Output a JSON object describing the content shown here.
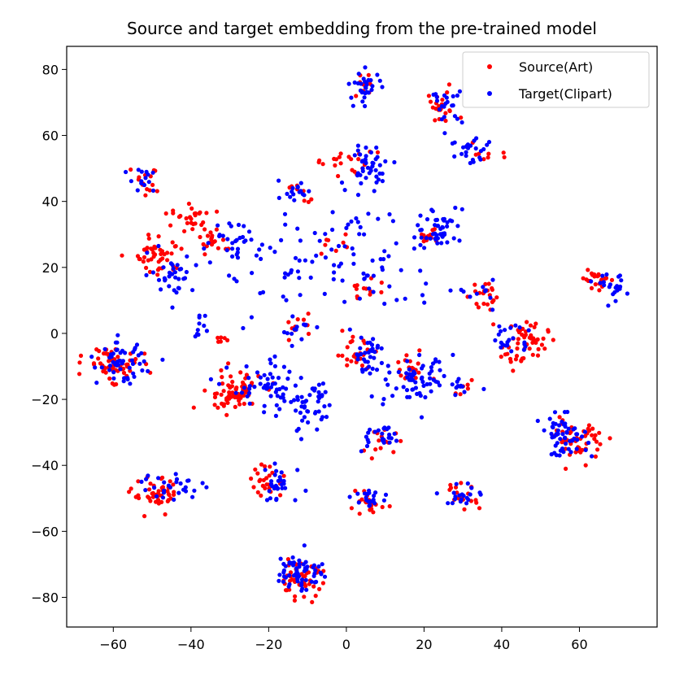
{
  "chart_data": {
    "type": "scatter",
    "title": "Source and target embedding from the pre-trained model",
    "xlabel": "",
    "ylabel": "",
    "xlim": [
      -72,
      80
    ],
    "ylim": [
      -89,
      87
    ],
    "xticks": [
      -60,
      -40,
      -20,
      0,
      20,
      40,
      60
    ],
    "yticks": [
      -80,
      -60,
      -40,
      -20,
      0,
      20,
      40,
      60,
      80
    ],
    "grid": false,
    "legend_position": "top-right",
    "legend": [
      "Source(Art)",
      "Target(Clipart)"
    ],
    "series": [
      {
        "name": "Source(Art)",
        "color": "#ff0000",
        "clusters": [
          {
            "center": [
              5,
              75
            ],
            "spread": [
              2,
              2
            ],
            "count": 8
          },
          {
            "center": [
              24,
              68
            ],
            "spread": [
              2.5,
              2.5
            ],
            "count": 22
          },
          {
            "center": [
              -51,
              46
            ],
            "spread": [
              2.5,
              2.5
            ],
            "count": 14
          },
          {
            "center": [
              2,
              51
            ],
            "spread": [
              3,
              2
            ],
            "count": 16
          },
          {
            "center": [
              36,
              55
            ],
            "spread": [
              2,
              2
            ],
            "count": 8
          },
          {
            "center": [
              -13,
              43
            ],
            "spread": [
              2,
              1.5
            ],
            "count": 8
          },
          {
            "center": [
              -40,
              34
            ],
            "spread": [
              2.5,
              2.5
            ],
            "count": 28
          },
          {
            "center": [
              -48,
              24
            ],
            "spread": [
              3,
              3
            ],
            "count": 45
          },
          {
            "center": [
              -34,
              28
            ],
            "spread": [
              2.5,
              2
            ],
            "count": 18
          },
          {
            "center": [
              -3,
              26
            ],
            "spread": [
              2,
              2
            ],
            "count": 8
          },
          {
            "center": [
              21,
              30
            ],
            "spread": [
              2,
              1.5
            ],
            "count": 12
          },
          {
            "center": [
              65,
              17
            ],
            "spread": [
              2,
              2
            ],
            "count": 22
          },
          {
            "center": [
              5,
              13
            ],
            "spread": [
              2,
              2
            ],
            "count": 12
          },
          {
            "center": [
              34,
              12
            ],
            "spread": [
              2,
              2.5
            ],
            "count": 20
          },
          {
            "center": [
              46,
              -3
            ],
            "spread": [
              3,
              3.5
            ],
            "count": 55
          },
          {
            "center": [
              -12,
              2
            ],
            "spread": [
              2,
              2
            ],
            "count": 10
          },
          {
            "center": [
              2,
              -6
            ],
            "spread": [
              2.5,
              2.5
            ],
            "count": 25
          },
          {
            "center": [
              16,
              -11
            ],
            "spread": [
              2.5,
              2.5
            ],
            "count": 18
          },
          {
            "center": [
              -60,
              -9
            ],
            "spread": [
              3.5,
              2.5
            ],
            "count": 60
          },
          {
            "center": [
              -29,
              -18
            ],
            "spread": [
              3.5,
              3
            ],
            "count": 75
          },
          {
            "center": [
              30,
              -17
            ],
            "spread": [
              1.5,
              1.5
            ],
            "count": 6
          },
          {
            "center": [
              9,
              -33
            ],
            "spread": [
              2,
              2
            ],
            "count": 14
          },
          {
            "center": [
              60,
              -32
            ],
            "spread": [
              3,
              3
            ],
            "count": 50
          },
          {
            "center": [
              -20,
              -45
            ],
            "spread": [
              2.5,
              2.5
            ],
            "count": 25
          },
          {
            "center": [
              -49,
              -49
            ],
            "spread": [
              3,
              2.5
            ],
            "count": 45
          },
          {
            "center": [
              6,
              -52
            ],
            "spread": [
              2.5,
              1.5
            ],
            "count": 22
          },
          {
            "center": [
              29,
              -50
            ],
            "spread": [
              2.5,
              2.5
            ],
            "count": 18
          },
          {
            "center": [
              -12,
              -75
            ],
            "spread": [
              3,
              2.5
            ],
            "count": 45
          },
          {
            "center": [
              -33,
              -2
            ],
            "spread": [
              1.5,
              1
            ],
            "count": 6
          },
          {
            "center": [
              -6,
              52
            ],
            "spread": [
              2,
              1
            ],
            "count": 5
          },
          {
            "center": [
              -39,
              -22
            ],
            "spread": [
              0.3,
              0.3
            ],
            "count": 1
          }
        ]
      },
      {
        "name": "Target(Clipart)",
        "color": "#0000ff",
        "clusters": [
          {
            "center": [
              5,
              75
            ],
            "spread": [
              2,
              2.5
            ],
            "count": 30
          },
          {
            "center": [
              26,
              69
            ],
            "spread": [
              2,
              2.5
            ],
            "count": 22
          },
          {
            "center": [
              -52,
              47
            ],
            "spread": [
              2,
              2.5
            ],
            "count": 14
          },
          {
            "center": [
              6,
              51
            ],
            "spread": [
              3,
              3
            ],
            "count": 40
          },
          {
            "center": [
              33,
              55
            ],
            "spread": [
              3,
              3
            ],
            "count": 26
          },
          {
            "center": [
              -13,
              43
            ],
            "spread": [
              2,
              1.5
            ],
            "count": 14
          },
          {
            "center": [
              -29,
              29
            ],
            "spread": [
              3,
              3
            ],
            "count": 26
          },
          {
            "center": [
              -45,
              18
            ],
            "spread": [
              3,
              3
            ],
            "count": 34
          },
          {
            "center": [
              24,
              32
            ],
            "spread": [
              3,
              3.5
            ],
            "count": 48
          },
          {
            "center": [
              5,
              22
            ],
            "spread": [
              10,
              9
            ],
            "count": 70
          },
          {
            "center": [
              -16,
              20
            ],
            "spread": [
              8,
              10
            ],
            "count": 35
          },
          {
            "center": [
              69,
              14
            ],
            "spread": [
              2,
              2
            ],
            "count": 22
          },
          {
            "center": [
              34,
              12
            ],
            "spread": [
              2,
              2
            ],
            "count": 10
          },
          {
            "center": [
              42,
              -1
            ],
            "spread": [
              3,
              2.5
            ],
            "count": 22
          },
          {
            "center": [
              -13,
              2
            ],
            "spread": [
              2,
              2
            ],
            "count": 12
          },
          {
            "center": [
              6,
              -6
            ],
            "spread": [
              2,
              2.5
            ],
            "count": 28
          },
          {
            "center": [
              19,
              -14
            ],
            "spread": [
              3,
              3
            ],
            "count": 40
          },
          {
            "center": [
              -58,
              -9
            ],
            "spread": [
              3,
              3
            ],
            "count": 55
          },
          {
            "center": [
              -20,
              -17
            ],
            "spread": [
              5,
              4
            ],
            "count": 55
          },
          {
            "center": [
              -9,
              -22
            ],
            "spread": [
              3,
              5
            ],
            "count": 45
          },
          {
            "center": [
              12,
              -15
            ],
            "spread": [
              8,
              6
            ],
            "count": 30
          },
          {
            "center": [
              30,
              -17
            ],
            "spread": [
              1.5,
              1.5
            ],
            "count": 10
          },
          {
            "center": [
              8,
              -32
            ],
            "spread": [
              2.5,
              2
            ],
            "count": 24
          },
          {
            "center": [
              56,
              -31
            ],
            "spread": [
              3,
              3
            ],
            "count": 55
          },
          {
            "center": [
              -17,
              -46
            ],
            "spread": [
              3,
              3
            ],
            "count": 30
          },
          {
            "center": [
              -45,
              -46
            ],
            "spread": [
              4,
              2
            ],
            "count": 28
          },
          {
            "center": [
              6,
              -50
            ],
            "spread": [
              2.5,
              1.5
            ],
            "count": 20
          },
          {
            "center": [
              31,
              -49
            ],
            "spread": [
              2.5,
              2
            ],
            "count": 20
          },
          {
            "center": [
              -12,
              -72
            ],
            "spread": [
              3,
              3
            ],
            "count": 60
          },
          {
            "center": [
              -37,
              2
            ],
            "spread": [
              1.5,
              2
            ],
            "count": 10
          }
        ]
      }
    ]
  }
}
